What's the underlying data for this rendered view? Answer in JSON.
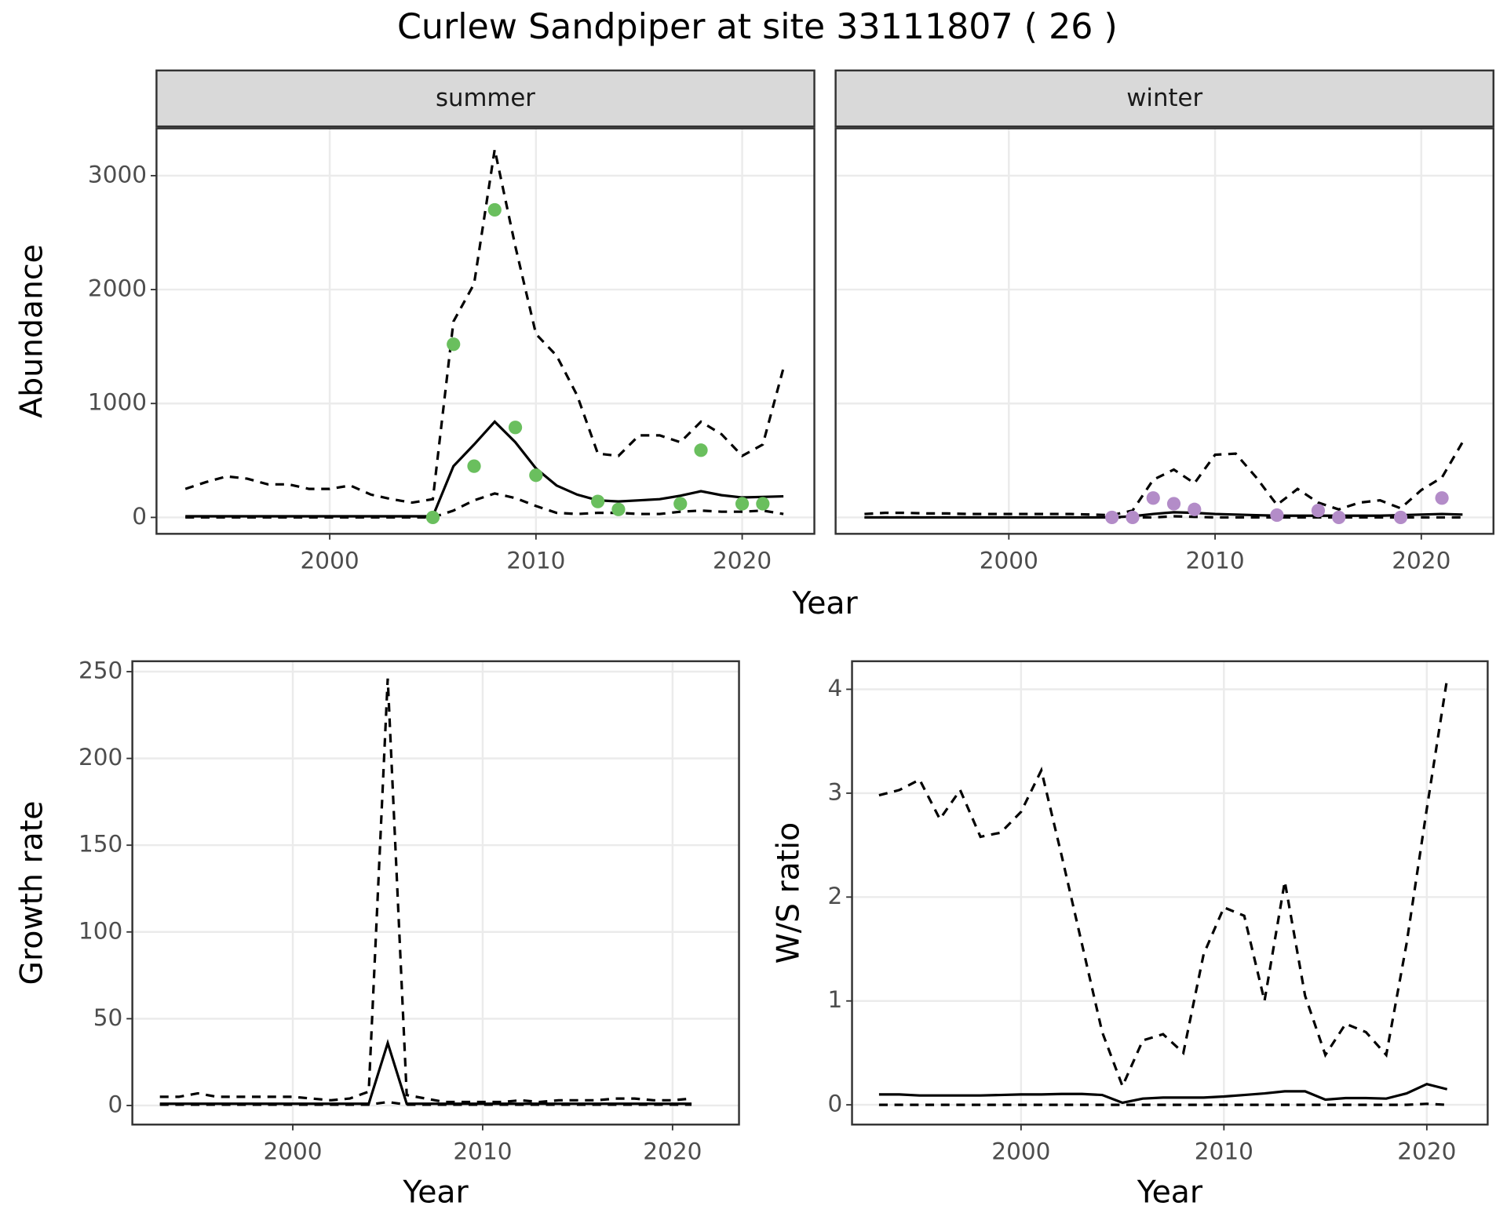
{
  "title": "Curlew Sandpiper at site 33111807 ( 26 )",
  "chart_data": [
    {
      "type": "line",
      "xlabel": "Year",
      "ylabel": "Abundance",
      "xlim": [
        1991.6,
        2023.5
      ],
      "ylim": [
        -144,
        3415
      ],
      "xticks": [
        2000,
        2010,
        2020
      ],
      "yticks": [
        0,
        1000,
        2000,
        3000
      ],
      "grid": true,
      "facets": [
        {
          "label": "summer",
          "x": [
            1993,
            1994,
            1995,
            1996,
            1997,
            1998,
            1999,
            2000,
            2001,
            2002,
            2003,
            2004,
            2005,
            2006,
            2007,
            2008,
            2009,
            2010,
            2011,
            2012,
            2013,
            2014,
            2015,
            2016,
            2017,
            2018,
            2019,
            2020,
            2021,
            2022
          ],
          "series": [
            {
              "style": "solid",
              "color": "#000000",
              "values": [
                10,
                10,
                10,
                10,
                10,
                10,
                10,
                10,
                10,
                10,
                10,
                10,
                10,
                450,
                640,
                840,
                660,
                430,
                280,
                200,
                150,
                140,
                150,
                160,
                190,
                230,
                195,
                175,
                180,
                185
              ]
            },
            {
              "style": "dashed",
              "color": "#000000",
              "values": [
                250,
                310,
                360,
                340,
                290,
                290,
                250,
                250,
                280,
                200,
                160,
                130,
                160,
                1720,
                2050,
                3230,
                2380,
                1610,
                1420,
                1070,
                560,
                540,
                720,
                720,
                660,
                840,
                730,
                540,
                640,
                1310
              ]
            },
            {
              "style": "dashed",
              "color": "#000000",
              "values": [
                0,
                0,
                0,
                0,
                0,
                0,
                0,
                0,
                0,
                0,
                0,
                0,
                0,
                60,
                150,
                210,
                170,
                100,
                40,
                30,
                40,
                40,
                30,
                30,
                50,
                60,
                50,
                50,
                60,
                30
              ]
            }
          ],
          "points": {
            "color": "#6abf5e",
            "x": [
              2005,
              2006,
              2007,
              2008,
              2009,
              2010,
              2013,
              2014,
              2017,
              2018,
              2020,
              2021
            ],
            "values": [
              0,
              1520,
              450,
              2700,
              790,
              370,
              140,
              70,
              120,
              590,
              120,
              120
            ]
          }
        },
        {
          "label": "winter",
          "x": [
            1993,
            1994,
            1995,
            1996,
            1997,
            1998,
            1999,
            2000,
            2001,
            2002,
            2003,
            2004,
            2005,
            2006,
            2007,
            2008,
            2009,
            2010,
            2011,
            2012,
            2013,
            2014,
            2015,
            2016,
            2017,
            2018,
            2019,
            2020,
            2021,
            2022
          ],
          "series": [
            {
              "style": "solid",
              "color": "#000000",
              "values": [
                0,
                0,
                0,
                0,
                0,
                0,
                0,
                0,
                0,
                0,
                0,
                0,
                0,
                10,
                30,
                45,
                40,
                30,
                25,
                20,
                15,
                15,
                15,
                15,
                15,
                15,
                20,
                25,
                30,
                25
              ]
            },
            {
              "style": "dashed",
              "color": "#000000",
              "values": [
                30,
                40,
                40,
                35,
                35,
                30,
                30,
                30,
                30,
                30,
                30,
                25,
                20,
                60,
                330,
                420,
                300,
                550,
                560,
                350,
                110,
                250,
                130,
                70,
                130,
                150,
                80,
                240,
                350,
                660
              ]
            },
            {
              "style": "dashed",
              "color": "#000000",
              "values": [
                0,
                0,
                0,
                0,
                0,
                0,
                0,
                0,
                0,
                0,
                0,
                0,
                0,
                0,
                0,
                10,
                5,
                0,
                0,
                0,
                0,
                0,
                0,
                0,
                0,
                0,
                0,
                0,
                0,
                0
              ]
            }
          ],
          "points": {
            "color": "#b38cc8",
            "x": [
              2005,
              2006,
              2007,
              2008,
              2009,
              2013,
              2015,
              2016,
              2019,
              2021
            ],
            "values": [
              0,
              0,
              170,
              120,
              70,
              20,
              60,
              0,
              0,
              170
            ]
          }
        }
      ]
    },
    {
      "type": "line",
      "xlabel": "Year",
      "ylabel": "Growth rate",
      "xlim": [
        1991.55,
        2023.5
      ],
      "ylim": [
        -11,
        256
      ],
      "xticks": [
        2000,
        2010,
        2020
      ],
      "yticks": [
        0,
        50,
        100,
        150,
        200,
        250
      ],
      "grid": true,
      "x": [
        1993,
        1994,
        1995,
        1996,
        1997,
        1998,
        1999,
        2000,
        2001,
        2002,
        2003,
        2004,
        2005,
        2006,
        2007,
        2008,
        2009,
        2010,
        2011,
        2012,
        2013,
        2014,
        2015,
        2016,
        2017,
        2018,
        2019,
        2020,
        2021
      ],
      "series": [
        {
          "style": "solid",
          "color": "#000000",
          "values": [
            1,
            1,
            1,
            1,
            1,
            1,
            1,
            1,
            1,
            1,
            1,
            1,
            36,
            1,
            1,
            1,
            1,
            1,
            1,
            1,
            1,
            1,
            1,
            1,
            1,
            1,
            1,
            1,
            1
          ]
        },
        {
          "style": "dashed",
          "color": "#000000",
          "values": [
            5,
            5,
            7,
            5,
            5,
            5,
            5,
            5,
            4,
            3,
            4,
            8,
            246,
            6,
            4,
            2,
            2,
            2,
            2,
            3,
            2,
            3,
            3,
            3,
            4,
            4,
            3,
            3,
            4
          ]
        },
        {
          "style": "dashed",
          "color": "#000000",
          "values": [
            0.5,
            0.5,
            0.5,
            0.5,
            0.5,
            0.5,
            0.5,
            0.5,
            0.5,
            0.5,
            0.5,
            0.5,
            2,
            0.5,
            0.5,
            0.5,
            0.5,
            0.5,
            0.5,
            0.5,
            0.5,
            0.5,
            0.5,
            0.5,
            0.5,
            0.5,
            0.5,
            0.5,
            0.5
          ]
        }
      ]
    },
    {
      "type": "line",
      "xlabel": "Year",
      "ylabel": "W/S ratio",
      "xlim": [
        1991.67,
        2023
      ],
      "ylim": [
        -0.19,
        4.27
      ],
      "xticks": [
        2000,
        2010,
        2020
      ],
      "yticks": [
        0,
        1,
        2,
        3,
        4
      ],
      "grid": true,
      "x": [
        1993,
        1994,
        1995,
        1996,
        1997,
        1998,
        1999,
        2000,
        2001,
        2002,
        2003,
        2004,
        2005,
        2006,
        2007,
        2008,
        2009,
        2010,
        2011,
        2012,
        2013,
        2014,
        2015,
        2016,
        2017,
        2018,
        2019,
        2020,
        2021
      ],
      "series": [
        {
          "style": "solid",
          "color": "#000000",
          "values": [
            0.1,
            0.1,
            0.09,
            0.09,
            0.09,
            0.09,
            0.095,
            0.1,
            0.1,
            0.105,
            0.105,
            0.095,
            0.02,
            0.06,
            0.07,
            0.07,
            0.07,
            0.08,
            0.095,
            0.11,
            0.13,
            0.13,
            0.05,
            0.065,
            0.065,
            0.06,
            0.11,
            0.2,
            0.15
          ]
        },
        {
          "style": "dashed",
          "color": "#000000",
          "values": [
            2.98,
            3.03,
            3.13,
            2.75,
            3.03,
            2.58,
            2.62,
            2.82,
            3.22,
            2.4,
            1.55,
            0.7,
            0.18,
            0.62,
            0.68,
            0.5,
            1.45,
            1.9,
            1.82,
            1.0,
            2.15,
            1.05,
            0.48,
            0.78,
            0.7,
            0.48,
            1.55,
            2.85,
            4.1
          ]
        },
        {
          "style": "dashed",
          "color": "#000000",
          "values": [
            0,
            0,
            0,
            0,
            0,
            0,
            0,
            0,
            0,
            0,
            0,
            0,
            0,
            0,
            0,
            0,
            0,
            0,
            0,
            0,
            0,
            0,
            0,
            0,
            0,
            0,
            0,
            0.01,
            0
          ]
        }
      ]
    }
  ]
}
